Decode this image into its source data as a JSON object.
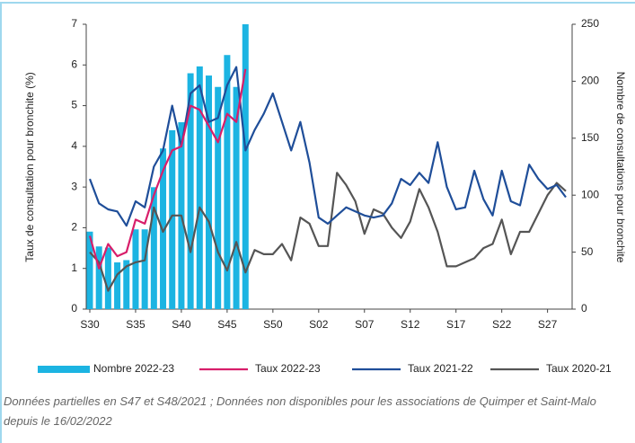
{
  "chart_data": {
    "type": "bar-line",
    "ylabel": "Taux de consultation pour bronchite (%)",
    "y2label": "Nombre de consultations pour bronchite",
    "categories": [
      "S30",
      null,
      null,
      null,
      null,
      "S35",
      null,
      null,
      null,
      null,
      "S40",
      null,
      null,
      null,
      null,
      "S45",
      null,
      null,
      null,
      null,
      "S50",
      null,
      null,
      null,
      null,
      "S02",
      null,
      null,
      null,
      null,
      "S07",
      null,
      null,
      null,
      null,
      "S12",
      null,
      null,
      null,
      null,
      "S17",
      null,
      null,
      null,
      null,
      "S22",
      null,
      null,
      null,
      null,
      "S27",
      null,
      null
    ],
    "ylim": [
      0,
      7
    ],
    "yticks": [
      0,
      1,
      2,
      3,
      4,
      5,
      6,
      7
    ],
    "y2lim": [
      0,
      250
    ],
    "y2ticks": [
      0,
      50,
      100,
      150,
      200,
      250
    ],
    "legend": "bottom",
    "series": [
      {
        "name": "Nombre 2022-23",
        "type": "bar",
        "axis": "y2",
        "color": "#1cb4e2",
        "values": [
          68,
          55,
          54,
          41,
          43,
          70,
          70,
          107,
          141,
          157,
          164,
          207,
          213,
          205,
          195,
          223,
          195,
          250,
          null,
          null,
          null,
          null,
          null,
          null,
          null,
          null,
          null,
          null,
          null,
          null,
          null,
          null,
          null,
          null,
          null,
          null,
          null,
          null,
          null,
          null,
          null,
          null,
          null,
          null,
          null,
          null,
          null,
          null,
          null,
          null,
          null,
          null,
          null
        ]
      },
      {
        "name": "Taux 2022-23",
        "type": "line",
        "color": "#d81e6a",
        "values": [
          1.8,
          1.0,
          1.6,
          1.3,
          1.4,
          2.2,
          2.1,
          2.8,
          3.4,
          3.9,
          4.0,
          5.0,
          4.9,
          4.5,
          4.1,
          4.8,
          4.6,
          5.9,
          null,
          null,
          null,
          null,
          null,
          null,
          null,
          null,
          null,
          null,
          null,
          null,
          null,
          null,
          null,
          null,
          null,
          null,
          null,
          null,
          null,
          null,
          null,
          null,
          null,
          null,
          null,
          null,
          null,
          null,
          null,
          null,
          null,
          null,
          null
        ]
      },
      {
        "name": "Taux 2021-22",
        "type": "line",
        "color": "#1f4e99",
        "values": [
          3.2,
          2.6,
          2.45,
          2.4,
          2.05,
          2.65,
          2.5,
          3.5,
          3.9,
          5.0,
          4.0,
          5.3,
          5.5,
          4.6,
          4.7,
          5.5,
          5.95,
          3.9,
          4.4,
          4.8,
          5.3,
          4.6,
          3.9,
          4.6,
          3.6,
          2.25,
          2.1,
          2.3,
          2.5,
          2.4,
          2.3,
          2.25,
          2.3,
          2.6,
          3.2,
          3.05,
          3.35,
          3.1,
          4.1,
          3.0,
          2.45,
          2.5,
          3.4,
          2.7,
          2.3,
          3.4,
          2.65,
          2.55,
          3.55,
          3.2,
          2.95,
          3.05,
          2.75
        ]
      },
      {
        "name": "Taux 2020-21",
        "type": "line",
        "color": "#555555",
        "values": [
          1.4,
          1.15,
          0.45,
          0.85,
          1.05,
          1.15,
          1.2,
          2.5,
          1.9,
          2.3,
          2.3,
          1.4,
          2.5,
          2.15,
          1.4,
          0.95,
          1.65,
          0.9,
          1.45,
          1.35,
          1.35,
          1.6,
          1.2,
          2.25,
          2.1,
          1.55,
          1.55,
          3.35,
          3.05,
          2.65,
          1.85,
          2.45,
          2.35,
          2.0,
          1.75,
          2.15,
          2.95,
          2.5,
          1.9,
          1.05,
          1.05,
          1.15,
          1.25,
          1.5,
          1.6,
          2.2,
          1.35,
          1.9,
          1.9,
          2.35,
          2.8,
          3.1,
          2.9
        ]
      }
    ],
    "note": "Données partielles en S47 et S48/2021 ; Données non disponibles pour les associations de Quimper et Saint-Malo depuis le 16/02/2022"
  }
}
